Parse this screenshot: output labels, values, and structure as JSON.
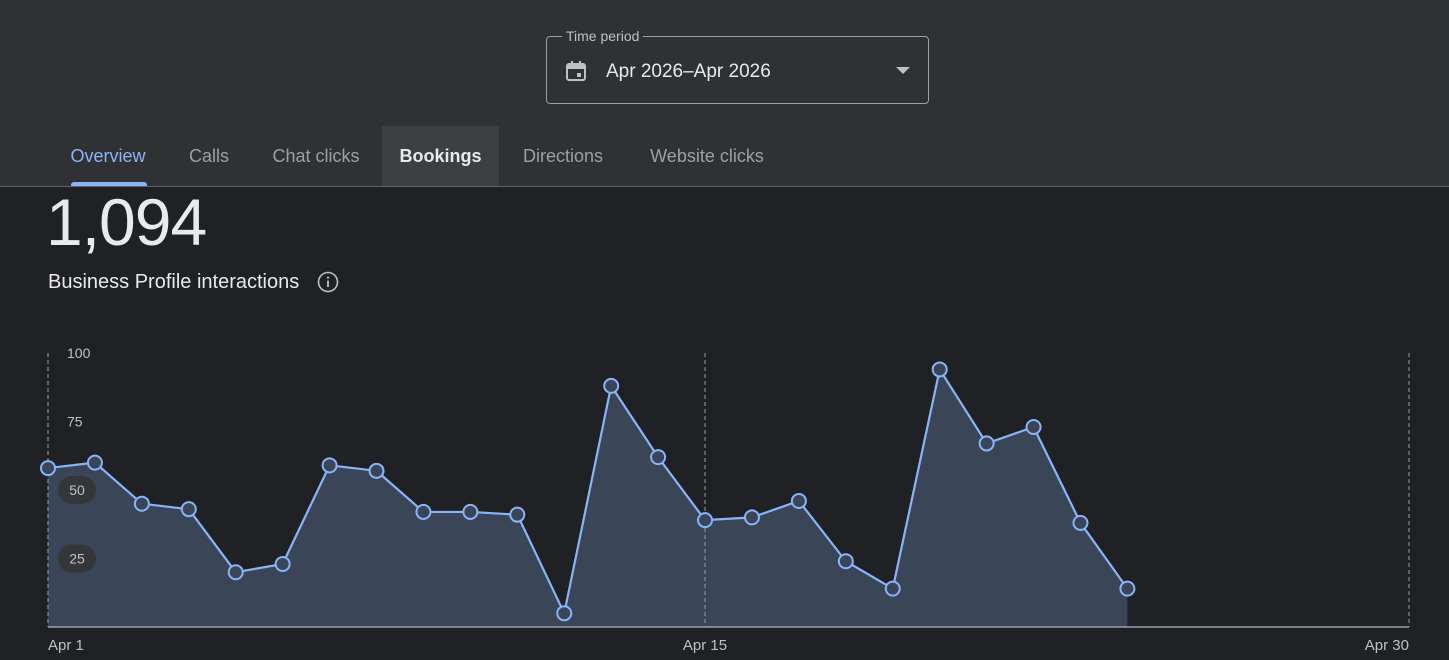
{
  "time_period": {
    "label": "Time period",
    "value": "Apr 2026–Apr 2026",
    "icon": "calendar-icon"
  },
  "tabs": [
    {
      "label": "Overview",
      "state": "selected"
    },
    {
      "label": "Calls"
    },
    {
      "label": "Chat clicks"
    },
    {
      "label": "Bookings",
      "state": "hovered"
    },
    {
      "label": "Directions"
    },
    {
      "label": "Website clicks"
    }
  ],
  "summary": {
    "total": "1,094",
    "label": "Business Profile interactions",
    "info_icon": "info-icon"
  },
  "colors": {
    "accent": "#8ab4f8",
    "area_fill": "#3a4558",
    "background": "#202124",
    "header": "#303134"
  },
  "chart_data": {
    "type": "area",
    "x_start_label": "Apr 1",
    "x_mid_label": "Apr 15",
    "x_end_label": "Apr 30",
    "x": [
      1,
      2,
      3,
      4,
      5,
      6,
      7,
      8,
      9,
      10,
      11,
      12,
      13,
      14,
      15,
      16,
      17,
      18,
      19,
      20,
      21,
      22,
      23,
      24
    ],
    "values": [
      58,
      60,
      45,
      43,
      20,
      23,
      59,
      57,
      42,
      42,
      41,
      5,
      88,
      62,
      39,
      40,
      46,
      24,
      14,
      94,
      67,
      73,
      38,
      14
    ],
    "yticks": [
      25,
      50,
      75,
      100
    ],
    "ylim": [
      0,
      100
    ],
    "xlim": [
      1,
      30
    ],
    "reference_lines": [
      1,
      15,
      30
    ],
    "markers": true
  }
}
